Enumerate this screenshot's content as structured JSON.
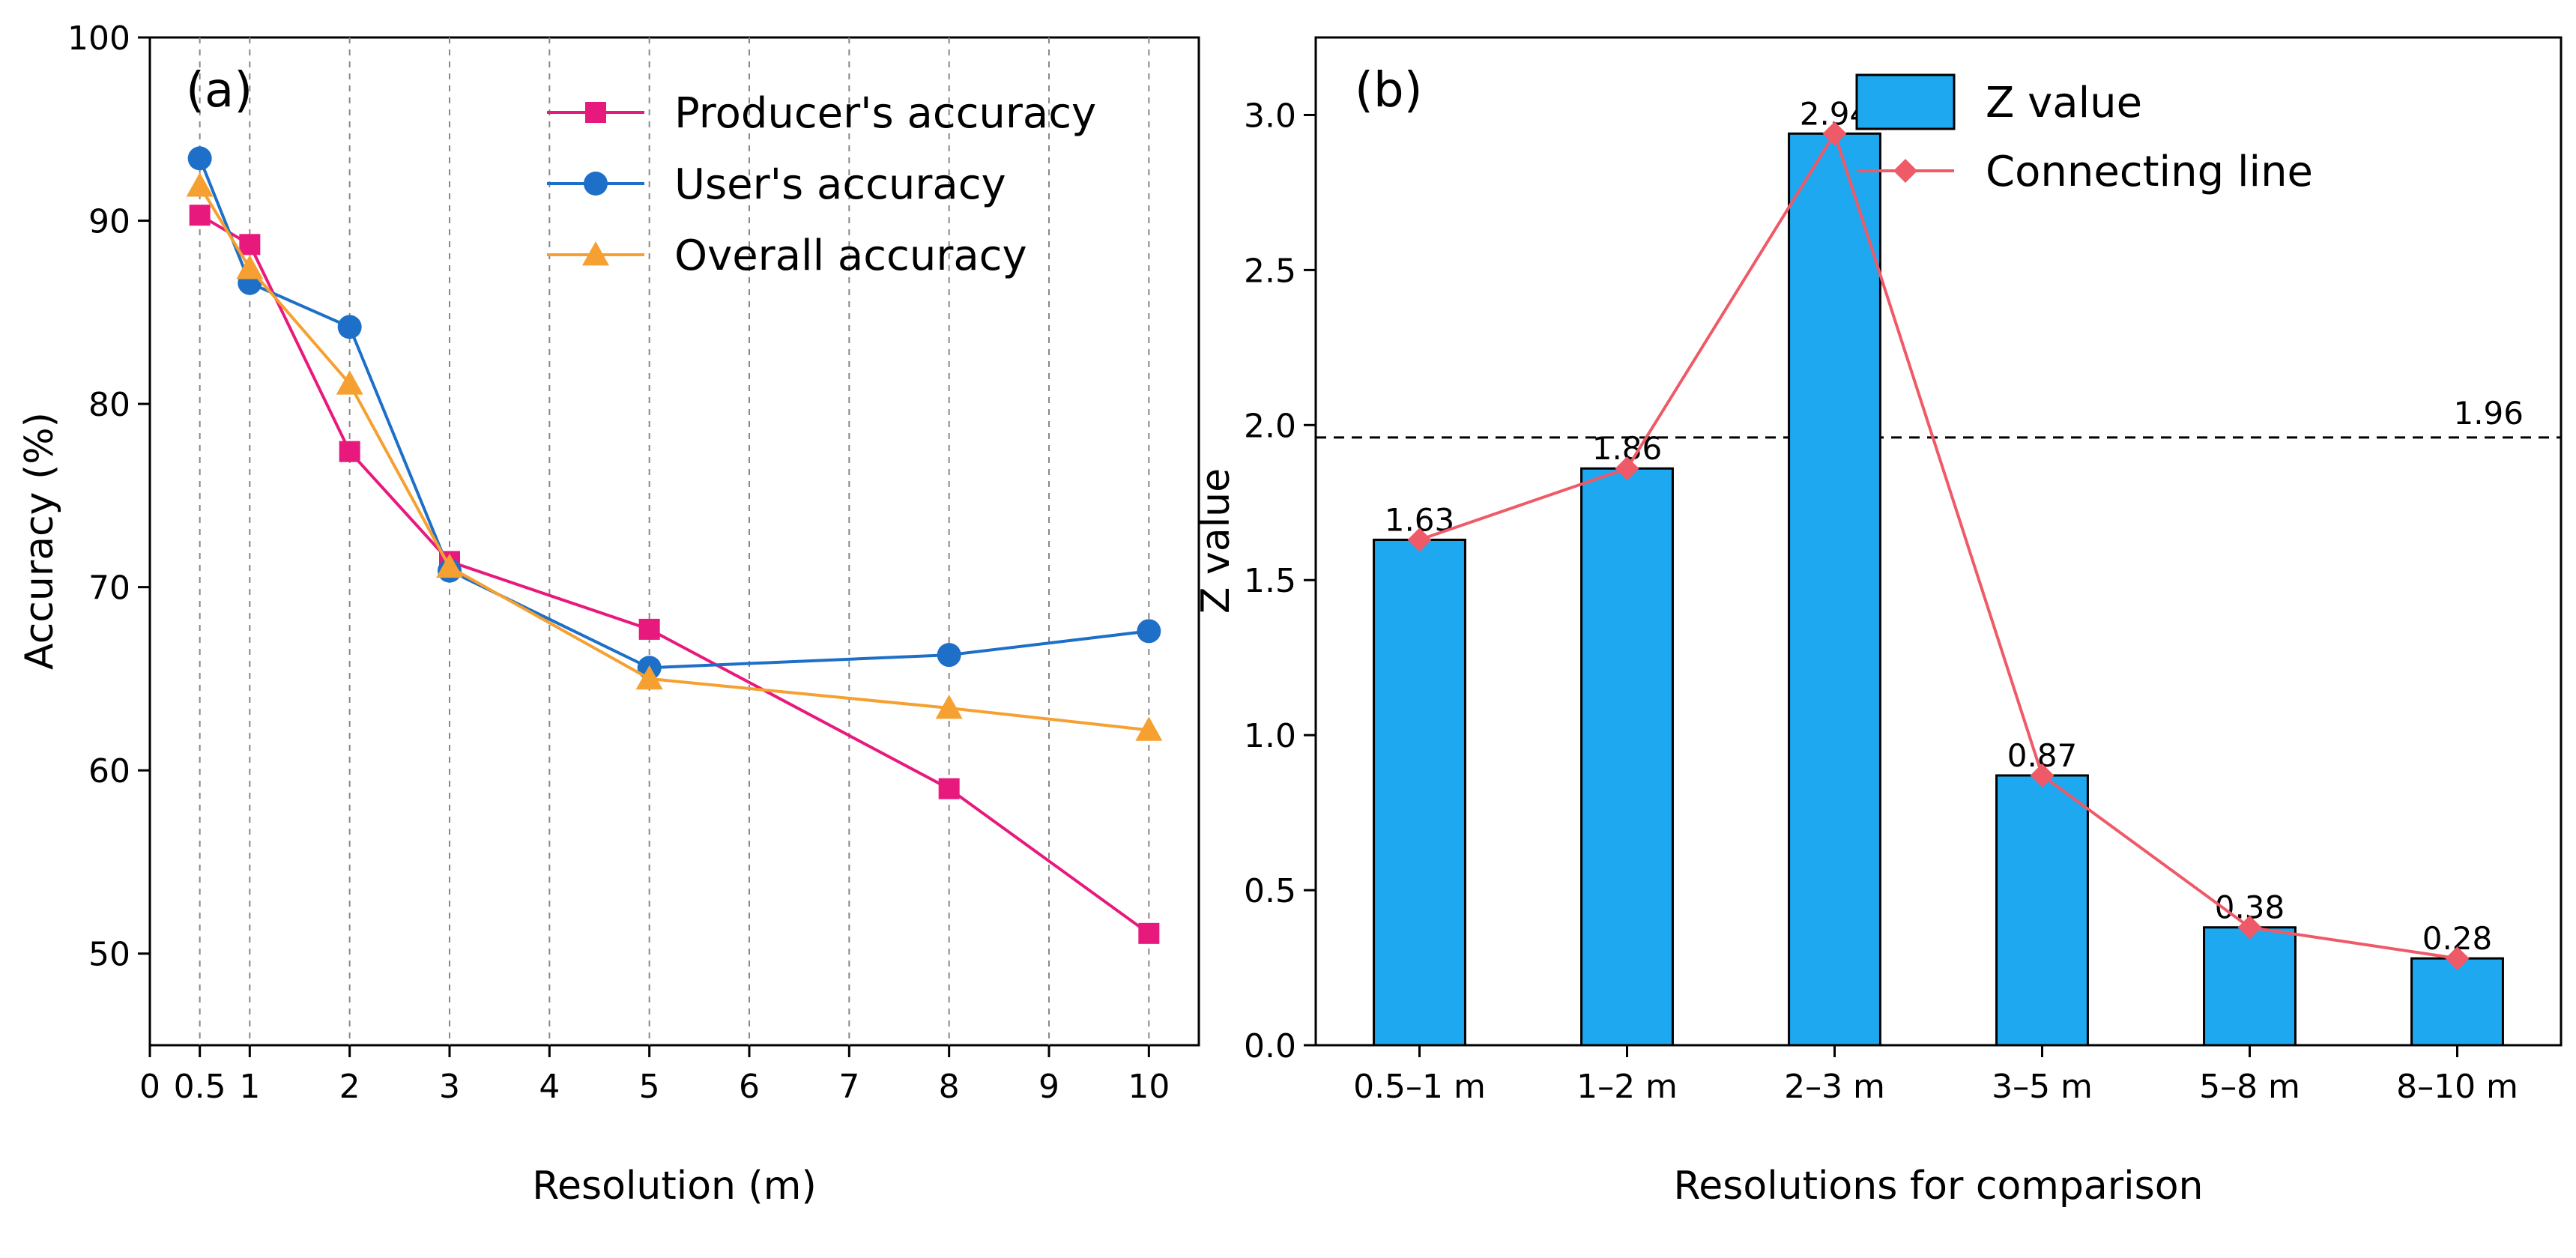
{
  "chart_data": [
    {
      "type": "line",
      "panel_label": "(a)",
      "xlabel": "Resolution (m)",
      "ylabel": "Accuracy (%)",
      "xlim": [
        0,
        10.5
      ],
      "ylim": [
        45,
        100
      ],
      "x_ticks": [
        0,
        0.5,
        1,
        2,
        3,
        4,
        5,
        6,
        7,
        8,
        9,
        10
      ],
      "x_tick_labels": [
        "0",
        "0.5",
        "1",
        "2",
        "3",
        "4",
        "5",
        "6",
        "7",
        "8",
        "9",
        "10"
      ],
      "y_ticks": [
        50,
        60,
        70,
        80,
        90,
        100
      ],
      "y_tick_labels": [
        "50",
        "60",
        "70",
        "80",
        "90",
        "100"
      ],
      "grid": "vertical dashed at x ticks",
      "legend_position": "top-right",
      "x": [
        0.5,
        1,
        2,
        3,
        5,
        8,
        10
      ],
      "series": [
        {
          "name": "Producer's accuracy",
          "marker": "square",
          "color": "#E8197D",
          "values": [
            90.3,
            88.7,
            77.4,
            71.4,
            67.7,
            59.0,
            51.1
          ]
        },
        {
          "name": "User's accuracy",
          "marker": "circle",
          "color": "#1E6FC8",
          "values": [
            93.4,
            86.6,
            84.2,
            70.9,
            65.6,
            66.3,
            67.6
          ]
        },
        {
          "name": "Overall accuracy",
          "marker": "triangle",
          "color": "#F5A030",
          "values": [
            91.9,
            87.4,
            81.1,
            71.1,
            65.0,
            63.4,
            62.2
          ]
        }
      ]
    },
    {
      "type": "bar",
      "panel_label": "(b)",
      "xlabel": "Resolutions for comparison",
      "ylabel": "Z value",
      "ylim": [
        0,
        3.25
      ],
      "y_ticks": [
        0,
        0.5,
        1.0,
        1.5,
        2.0,
        2.5,
        3.0
      ],
      "y_tick_labels": [
        "0.0",
        "0.5",
        "1.0",
        "1.5",
        "2.0",
        "2.5",
        "3.0"
      ],
      "categories": [
        "0.5–1 m",
        "1–2 m",
        "2–3 m",
        "3–5 m",
        "5–8 m",
        "8–10 m"
      ],
      "values": [
        1.63,
        1.86,
        2.94,
        0.87,
        0.38,
        0.28
      ],
      "value_labels": [
        "1.63",
        "1.86",
        "2.94",
        "0.87",
        "0.38",
        "0.28"
      ],
      "bar_color": "#1EA8F0",
      "line_color": "#EF5A68",
      "reference_line": {
        "value": 1.96,
        "label": "1.96",
        "style": "dashed"
      },
      "legend_position": "top-right",
      "legend": [
        "Z value",
        "Connecting line"
      ]
    }
  ]
}
